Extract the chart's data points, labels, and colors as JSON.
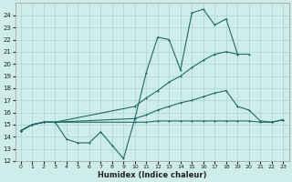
{
  "xlabel": "Humidex (Indice chaleur)",
  "bg_color": "#ceecea",
  "grid_color": "#aed8d4",
  "line_color": "#1e6b65",
  "xlim": [
    -0.5,
    23.5
  ],
  "ylim": [
    12,
    25
  ],
  "yticks": [
    12,
    13,
    14,
    15,
    16,
    17,
    18,
    19,
    20,
    21,
    22,
    23,
    24
  ],
  "xticks": [
    0,
    1,
    2,
    3,
    4,
    5,
    6,
    7,
    8,
    9,
    10,
    11,
    12,
    13,
    14,
    15,
    16,
    17,
    18,
    19,
    20,
    21,
    22,
    23
  ],
  "series": [
    {
      "x": [
        0,
        1,
        2,
        3,
        4,
        5,
        6,
        7,
        8,
        9,
        10,
        11,
        12,
        13,
        14,
        15,
        16,
        17,
        18,
        19
      ],
      "y": [
        14.5,
        15.0,
        15.2,
        15.2,
        13.8,
        13.5,
        13.5,
        14.4,
        13.3,
        12.2,
        15.5,
        19.3,
        22.2,
        22.0,
        19.5,
        24.2,
        24.5,
        23.2,
        23.7,
        20.8
      ]
    },
    {
      "x": [
        0,
        1,
        2,
        3,
        10,
        11,
        12,
        13,
        14,
        15,
        16,
        17,
        18,
        19,
        20
      ],
      "y": [
        14.5,
        15.0,
        15.2,
        15.2,
        16.5,
        17.2,
        17.8,
        18.5,
        19.0,
        19.7,
        20.3,
        20.8,
        21.0,
        20.8,
        20.8
      ]
    },
    {
      "x": [
        0,
        1,
        2,
        3,
        10,
        11,
        12,
        13,
        14,
        15,
        16,
        17,
        18,
        19,
        20,
        21,
        22,
        23
      ],
      "y": [
        14.5,
        15.0,
        15.2,
        15.2,
        15.5,
        15.8,
        16.2,
        16.5,
        16.8,
        17.0,
        17.3,
        17.6,
        17.8,
        16.5,
        16.2,
        15.3,
        15.2,
        15.4
      ]
    },
    {
      "x": [
        0,
        1,
        2,
        3,
        10,
        11,
        12,
        13,
        14,
        15,
        16,
        17,
        18,
        19,
        20,
        21,
        22,
        23
      ],
      "y": [
        14.5,
        15.0,
        15.2,
        15.2,
        15.2,
        15.2,
        15.3,
        15.3,
        15.3,
        15.3,
        15.3,
        15.3,
        15.3,
        15.3,
        15.3,
        15.2,
        15.2,
        15.4
      ]
    }
  ]
}
